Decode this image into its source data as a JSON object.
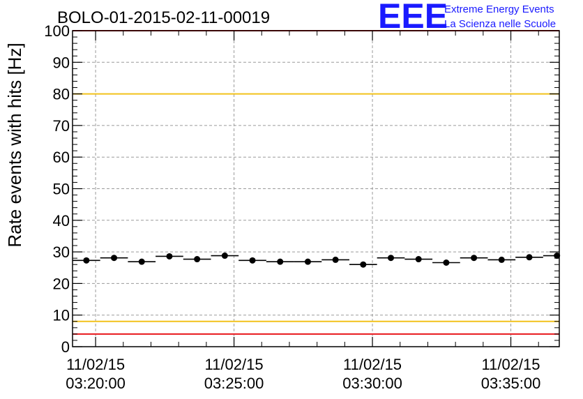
{
  "chart_data": {
    "type": "scatter",
    "title": "BOLO-01-2015-02-11-00019",
    "xlabel": "",
    "ylabel": "Rate events with hits [Hz]",
    "x_unit": "time",
    "xlim": [
      "03:19:10",
      "03:36:45"
    ],
    "ylim": [
      0,
      100
    ],
    "y_ticks": [
      0,
      10,
      20,
      30,
      40,
      50,
      60,
      70,
      80,
      90,
      100
    ],
    "x_ticks": [
      {
        "time": "03:20:00",
        "date_label": "11/02/15",
        "time_label": "03:20:00"
      },
      {
        "time": "03:25:00",
        "date_label": "11/02/15",
        "time_label": "03:25:00"
      },
      {
        "time": "03:30:00",
        "date_label": "11/02/15",
        "time_label": "03:30:00"
      },
      {
        "time": "03:35:00",
        "date_label": "11/02/15",
        "time_label": "03:35:00"
      }
    ],
    "grid": true,
    "bin_width_seconds": 60,
    "points": [
      {
        "x": "03:19:40",
        "y": 27.3
      },
      {
        "x": "03:20:40",
        "y": 28.1
      },
      {
        "x": "03:21:40",
        "y": 26.9
      },
      {
        "x": "03:22:40",
        "y": 28.6
      },
      {
        "x": "03:23:40",
        "y": 27.7
      },
      {
        "x": "03:24:40",
        "y": 28.8
      },
      {
        "x": "03:25:40",
        "y": 27.3
      },
      {
        "x": "03:26:40",
        "y": 26.9
      },
      {
        "x": "03:27:40",
        "y": 26.9
      },
      {
        "x": "03:28:40",
        "y": 27.5
      },
      {
        "x": "03:29:40",
        "y": 26.0
      },
      {
        "x": "03:30:40",
        "y": 28.1
      },
      {
        "x": "03:31:40",
        "y": 27.7
      },
      {
        "x": "03:32:40",
        "y": 26.6
      },
      {
        "x": "03:33:40",
        "y": 28.1
      },
      {
        "x": "03:34:40",
        "y": 27.5
      },
      {
        "x": "03:35:40",
        "y": 28.3
      },
      {
        "x": "03:36:40",
        "y": 28.8
      }
    ],
    "reference_lines": [
      {
        "y": 100,
        "color": "#e8161b"
      },
      {
        "y": 80,
        "color": "#f2c21b"
      },
      {
        "y": 8,
        "color": "#f2c21b"
      },
      {
        "y": 4,
        "color": "#e8161b"
      }
    ]
  },
  "logo": {
    "mark": "EEE",
    "line1": "Extreme Energy Events",
    "line2": "La Scienza nelle Scuole",
    "color": "#1a1aff"
  }
}
